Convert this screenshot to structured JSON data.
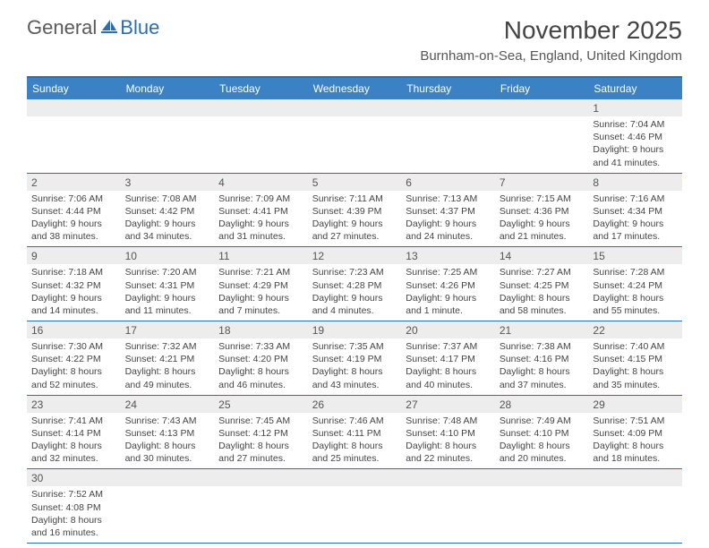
{
  "logo": {
    "general": "General",
    "blue": "Blue"
  },
  "title": "November 2025",
  "location": "Burnham-on-Sea, England, United Kingdom",
  "colors": {
    "header_bg": "#3b82c4",
    "border": "#2a6fb5",
    "shaded": "#ededed",
    "text": "#444444"
  },
  "days_of_week": [
    "Sunday",
    "Monday",
    "Tuesday",
    "Wednesday",
    "Thursday",
    "Friday",
    "Saturday"
  ],
  "leading_blanks": 6,
  "cells": [
    {
      "n": "1",
      "sr": "Sunrise: 7:04 AM",
      "ss": "Sunset: 4:46 PM",
      "d1": "Daylight: 9 hours",
      "d2": "and 41 minutes."
    },
    {
      "n": "2",
      "sr": "Sunrise: 7:06 AM",
      "ss": "Sunset: 4:44 PM",
      "d1": "Daylight: 9 hours",
      "d2": "and 38 minutes."
    },
    {
      "n": "3",
      "sr": "Sunrise: 7:08 AM",
      "ss": "Sunset: 4:42 PM",
      "d1": "Daylight: 9 hours",
      "d2": "and 34 minutes."
    },
    {
      "n": "4",
      "sr": "Sunrise: 7:09 AM",
      "ss": "Sunset: 4:41 PM",
      "d1": "Daylight: 9 hours",
      "d2": "and 31 minutes."
    },
    {
      "n": "5",
      "sr": "Sunrise: 7:11 AM",
      "ss": "Sunset: 4:39 PM",
      "d1": "Daylight: 9 hours",
      "d2": "and 27 minutes."
    },
    {
      "n": "6",
      "sr": "Sunrise: 7:13 AM",
      "ss": "Sunset: 4:37 PM",
      "d1": "Daylight: 9 hours",
      "d2": "and 24 minutes."
    },
    {
      "n": "7",
      "sr": "Sunrise: 7:15 AM",
      "ss": "Sunset: 4:36 PM",
      "d1": "Daylight: 9 hours",
      "d2": "and 21 minutes."
    },
    {
      "n": "8",
      "sr": "Sunrise: 7:16 AM",
      "ss": "Sunset: 4:34 PM",
      "d1": "Daylight: 9 hours",
      "d2": "and 17 minutes."
    },
    {
      "n": "9",
      "sr": "Sunrise: 7:18 AM",
      "ss": "Sunset: 4:32 PM",
      "d1": "Daylight: 9 hours",
      "d2": "and 14 minutes."
    },
    {
      "n": "10",
      "sr": "Sunrise: 7:20 AM",
      "ss": "Sunset: 4:31 PM",
      "d1": "Daylight: 9 hours",
      "d2": "and 11 minutes."
    },
    {
      "n": "11",
      "sr": "Sunrise: 7:21 AM",
      "ss": "Sunset: 4:29 PM",
      "d1": "Daylight: 9 hours",
      "d2": "and 7 minutes."
    },
    {
      "n": "12",
      "sr": "Sunrise: 7:23 AM",
      "ss": "Sunset: 4:28 PM",
      "d1": "Daylight: 9 hours",
      "d2": "and 4 minutes."
    },
    {
      "n": "13",
      "sr": "Sunrise: 7:25 AM",
      "ss": "Sunset: 4:26 PM",
      "d1": "Daylight: 9 hours",
      "d2": "and 1 minute."
    },
    {
      "n": "14",
      "sr": "Sunrise: 7:27 AM",
      "ss": "Sunset: 4:25 PM",
      "d1": "Daylight: 8 hours",
      "d2": "and 58 minutes."
    },
    {
      "n": "15",
      "sr": "Sunrise: 7:28 AM",
      "ss": "Sunset: 4:24 PM",
      "d1": "Daylight: 8 hours",
      "d2": "and 55 minutes."
    },
    {
      "n": "16",
      "sr": "Sunrise: 7:30 AM",
      "ss": "Sunset: 4:22 PM",
      "d1": "Daylight: 8 hours",
      "d2": "and 52 minutes."
    },
    {
      "n": "17",
      "sr": "Sunrise: 7:32 AM",
      "ss": "Sunset: 4:21 PM",
      "d1": "Daylight: 8 hours",
      "d2": "and 49 minutes."
    },
    {
      "n": "18",
      "sr": "Sunrise: 7:33 AM",
      "ss": "Sunset: 4:20 PM",
      "d1": "Daylight: 8 hours",
      "d2": "and 46 minutes."
    },
    {
      "n": "19",
      "sr": "Sunrise: 7:35 AM",
      "ss": "Sunset: 4:19 PM",
      "d1": "Daylight: 8 hours",
      "d2": "and 43 minutes."
    },
    {
      "n": "20",
      "sr": "Sunrise: 7:37 AM",
      "ss": "Sunset: 4:17 PM",
      "d1": "Daylight: 8 hours",
      "d2": "and 40 minutes."
    },
    {
      "n": "21",
      "sr": "Sunrise: 7:38 AM",
      "ss": "Sunset: 4:16 PM",
      "d1": "Daylight: 8 hours",
      "d2": "and 37 minutes."
    },
    {
      "n": "22",
      "sr": "Sunrise: 7:40 AM",
      "ss": "Sunset: 4:15 PM",
      "d1": "Daylight: 8 hours",
      "d2": "and 35 minutes."
    },
    {
      "n": "23",
      "sr": "Sunrise: 7:41 AM",
      "ss": "Sunset: 4:14 PM",
      "d1": "Daylight: 8 hours",
      "d2": "and 32 minutes."
    },
    {
      "n": "24",
      "sr": "Sunrise: 7:43 AM",
      "ss": "Sunset: 4:13 PM",
      "d1": "Daylight: 8 hours",
      "d2": "and 30 minutes."
    },
    {
      "n": "25",
      "sr": "Sunrise: 7:45 AM",
      "ss": "Sunset: 4:12 PM",
      "d1": "Daylight: 8 hours",
      "d2": "and 27 minutes."
    },
    {
      "n": "26",
      "sr": "Sunrise: 7:46 AM",
      "ss": "Sunset: 4:11 PM",
      "d1": "Daylight: 8 hours",
      "d2": "and 25 minutes."
    },
    {
      "n": "27",
      "sr": "Sunrise: 7:48 AM",
      "ss": "Sunset: 4:10 PM",
      "d1": "Daylight: 8 hours",
      "d2": "and 22 minutes."
    },
    {
      "n": "28",
      "sr": "Sunrise: 7:49 AM",
      "ss": "Sunset: 4:10 PM",
      "d1": "Daylight: 8 hours",
      "d2": "and 20 minutes."
    },
    {
      "n": "29",
      "sr": "Sunrise: 7:51 AM",
      "ss": "Sunset: 4:09 PM",
      "d1": "Daylight: 8 hours",
      "d2": "and 18 minutes."
    },
    {
      "n": "30",
      "sr": "Sunrise: 7:52 AM",
      "ss": "Sunset: 4:08 PM",
      "d1": "Daylight: 8 hours",
      "d2": "and 16 minutes."
    }
  ]
}
